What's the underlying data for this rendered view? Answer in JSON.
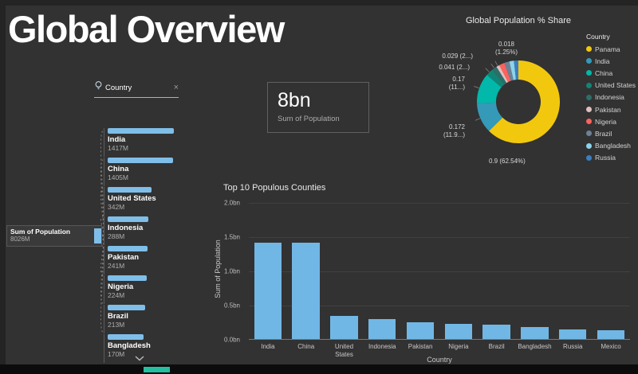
{
  "page": {
    "title": "Global Overview"
  },
  "colors": {
    "tree_bar": "#7FBEE9",
    "accent_teal": "#23BFA0",
    "filter_underline": "#85BEE4"
  },
  "decomposition_tree": {
    "filter": {
      "label": "Country",
      "close": "×"
    },
    "root": {
      "label": "Sum of Population",
      "value": "8026M"
    },
    "nodes": [
      {
        "label": "India",
        "value": "1417M",
        "bar_pct": 100
      },
      {
        "label": "China",
        "value": "1405M",
        "bar_pct": 99
      },
      {
        "label": "United States",
        "value": "342M",
        "bar_pct": 66
      },
      {
        "label": "Indonesia",
        "value": "288M",
        "bar_pct": 62
      },
      {
        "label": "Pakistan",
        "value": "241M",
        "bar_pct": 60
      },
      {
        "label": "Nigeria",
        "value": "224M",
        "bar_pct": 59
      },
      {
        "label": "Brazil",
        "value": "213M",
        "bar_pct": 57
      },
      {
        "label": "Bangladesh",
        "value": "170M",
        "bar_pct": 54
      }
    ]
  },
  "card": {
    "value": "8bn",
    "label": "Sum of Population"
  },
  "chart_data": [
    {
      "type": "pie",
      "subtype": "donut",
      "title": "Global Population % Share",
      "legend_title": "Country",
      "legend_position": "right",
      "slices": [
        {
          "label": "Panama",
          "value": 0.9,
          "pct": 62.54,
          "color": "#F2C80F",
          "callout": "0.9 (62.54%)"
        },
        {
          "label": "India",
          "value": 0.172,
          "pct": 11.94,
          "color": "#3599B8",
          "callout": "0.172\n(11.9...)"
        },
        {
          "label": "China",
          "value": 0.17,
          "pct": 11.8,
          "color": "#01B8AA",
          "callout": "0.17\n(11...)"
        },
        {
          "label": "United States",
          "value": 0.041,
          "pct": 2.85,
          "color": "#118575",
          "callout": "0.041 (2...)"
        },
        {
          "label": "Indonesia",
          "value": 0.029,
          "pct": 2.0,
          "color": "#2D6E68",
          "callout": "0.029 (2...)"
        },
        {
          "label": "Pakistan",
          "value": 0.018,
          "pct": 1.25,
          "color": "#DFBFBF",
          "callout": "0.018\n(1.25%)"
        },
        {
          "label": "Nigeria",
          "value": null,
          "pct": 2.1,
          "color": "#FD625E",
          "callout": null
        },
        {
          "label": "Brazil",
          "value": null,
          "pct": 2.0,
          "color": "#6D8196",
          "callout": null
        },
        {
          "label": "Bangladesh",
          "value": null,
          "pct": 1.8,
          "color": "#8AD4EB",
          "callout": null
        },
        {
          "label": "Russia",
          "value": null,
          "pct": 1.72,
          "color": "#3B7EC1",
          "callout": null
        }
      ]
    },
    {
      "type": "bar",
      "title": "Top 10 Populous Counties",
      "xlabel": "Country",
      "ylabel": "Sum of Population",
      "ylim": [
        0,
        2.0
      ],
      "yticks": [
        "2.0bn",
        "1.5bn",
        "1.0bn",
        "0.5bn",
        "0.0bn"
      ],
      "bar_color": "#71B7E5",
      "categories": [
        "India",
        "China",
        "United States",
        "Indonesia",
        "Pakistan",
        "Nigeria",
        "Brazil",
        "Bangladesh",
        "Russia",
        "Mexico"
      ],
      "values": [
        1.42,
        1.41,
        0.34,
        0.29,
        0.24,
        0.22,
        0.21,
        0.17,
        0.145,
        0.13
      ]
    }
  ]
}
